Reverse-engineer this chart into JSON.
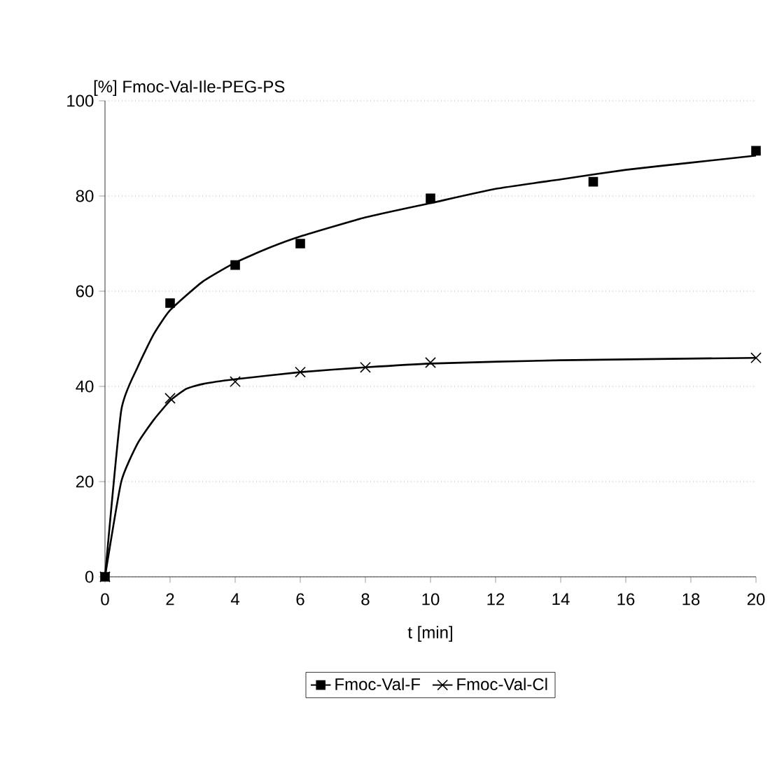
{
  "chart_data": {
    "type": "scatter",
    "ylabel": "[%] Fmoc-Val-Ile-PEG-PS",
    "xlabel": "t [min]",
    "xlim": [
      0,
      20
    ],
    "xticks": [
      0,
      2,
      4,
      6,
      8,
      10,
      12,
      14,
      16,
      18,
      20
    ],
    "ylim": [
      0,
      100
    ],
    "yticks": [
      0,
      20,
      40,
      60,
      80,
      100
    ],
    "grid": "y",
    "legend": "bottom",
    "series": [
      {
        "name": "Fmoc-Val-F",
        "color": "#000000",
        "marker": "square",
        "x": [
          0,
          2,
          4,
          6,
          10,
          15,
          20
        ],
        "values": [
          0,
          57.5,
          65.5,
          70,
          79.5,
          83,
          89.5
        ]
      },
      {
        "name": "Fmoc-Val-Cl",
        "color": "#000000",
        "marker": "cross",
        "x": [
          0,
          2,
          4,
          6,
          8,
          10,
          20
        ],
        "values": [
          0,
          37.5,
          41,
          43,
          44,
          45,
          46
        ]
      },
      {
        "type": "line",
        "color": "#000000",
        "marker": "none",
        "x": [
          0,
          0.5,
          1,
          1.5,
          2,
          3,
          4,
          5,
          6,
          8,
          10,
          12,
          14,
          16,
          18,
          20
        ],
        "values": [
          0,
          35,
          44,
          51,
          56,
          62,
          66,
          69,
          71.5,
          75.5,
          78.5,
          81.5,
          83.5,
          85.5,
          87,
          88.5
        ]
      },
      {
        "type": "line",
        "color": "#000000",
        "marker": "none",
        "x": [
          0,
          0.5,
          1,
          1.5,
          2,
          2.5,
          3,
          4,
          6,
          8,
          10,
          14,
          20
        ],
        "values": [
          0,
          20,
          28,
          33,
          37,
          39.5,
          40.5,
          41.5,
          43,
          44,
          44.8,
          45.5,
          46
        ]
      }
    ]
  }
}
